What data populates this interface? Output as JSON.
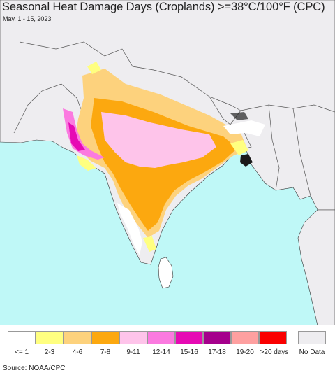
{
  "title": "Seasonal Heat Damage Days (Croplands) >=38°C/100°F (CPC)",
  "subtitle": "May. 1 - 15, 2023",
  "source": "Source: NOAA/CPC",
  "colors": {
    "ocean": "#bff8f7",
    "land": "#eeedf0",
    "border": "#333333"
  },
  "legend": [
    {
      "label": "<= 1",
      "color": "#ffffff"
    },
    {
      "label": "2-3",
      "color": "#ffff80"
    },
    {
      "label": "4-6",
      "color": "#fdd27d"
    },
    {
      "label": "7-8",
      "color": "#fca80f"
    },
    {
      "label": "9-11",
      "color": "#fec4ea"
    },
    {
      "label": "12-14",
      "color": "#fb7ae0"
    },
    {
      "label": "15-16",
      "color": "#e60ab4"
    },
    {
      "label": "17-18",
      "color": "#a5008c"
    },
    {
      "label": "19-20",
      "color": "#fea0a0"
    },
    {
      "label": ">20 days",
      "color": "#fa0000"
    }
  ],
  "no_data": {
    "label": "No Data",
    "color": "#eeedf0"
  }
}
